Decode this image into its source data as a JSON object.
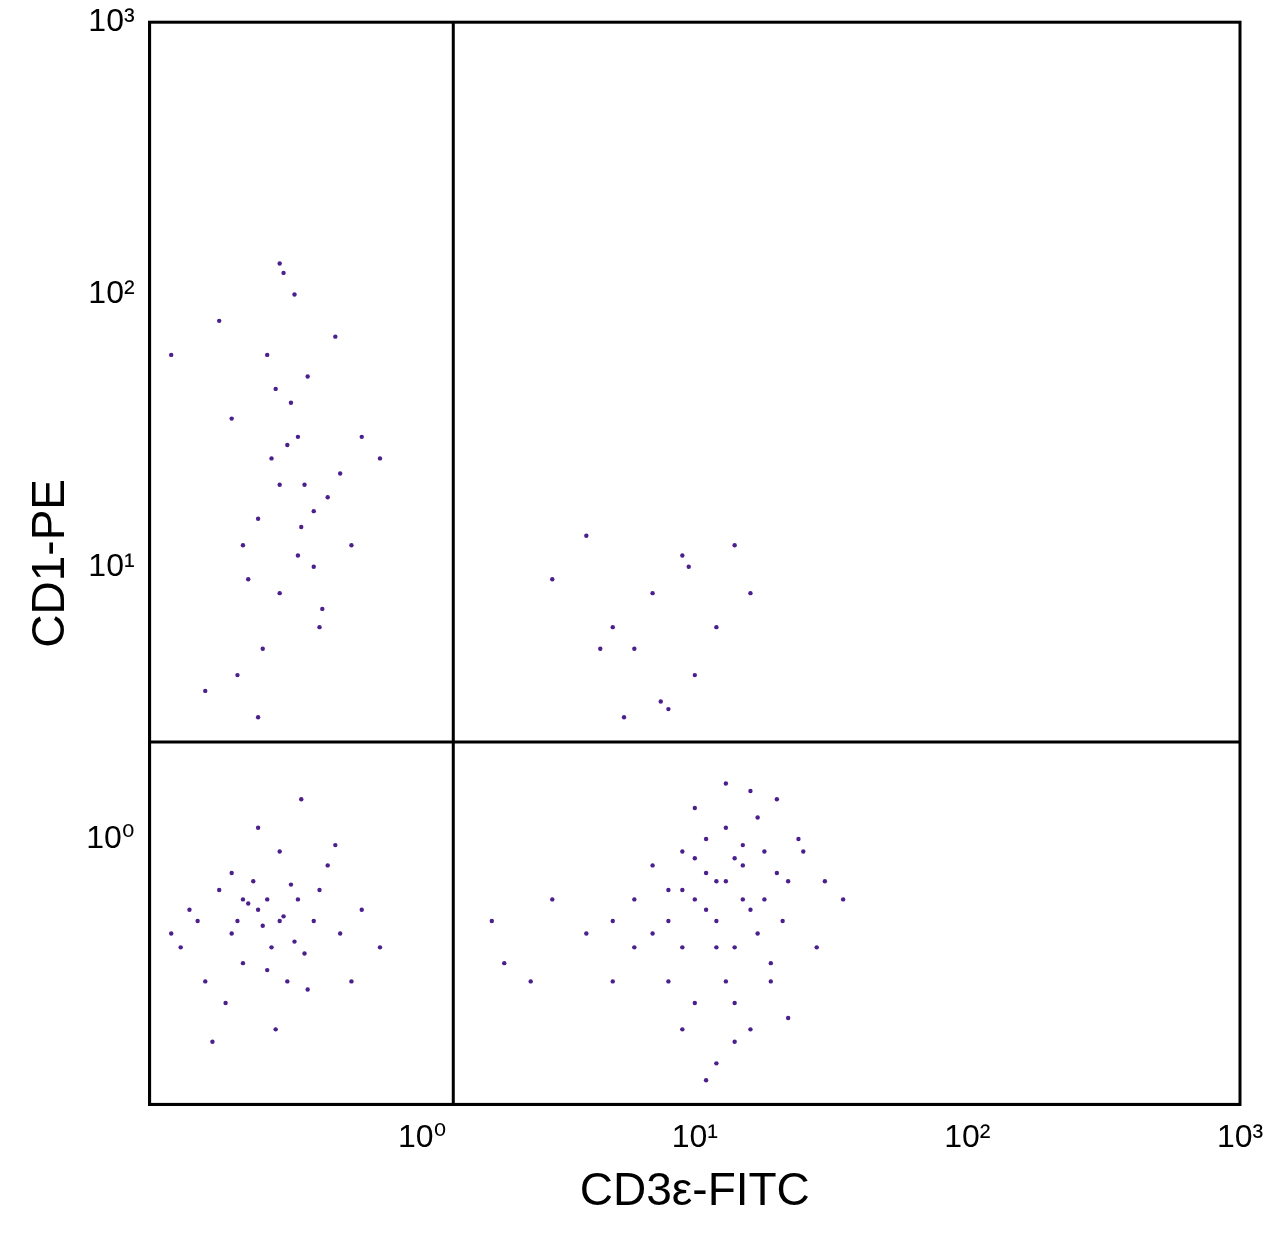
{
  "chart_data": {
    "type": "scatter",
    "x_label": "CD3ε-FITC",
    "y_label": "CD1-PE",
    "log": true,
    "grid": false,
    "color": "#4b1f8c",
    "marker": "dot",
    "xlim": [
      0.1,
      1000
    ],
    "ylim": [
      0.106,
      1000
    ],
    "xticks": [
      {
        "value": 1,
        "label": "10⁰"
      },
      {
        "value": 10,
        "label": "10¹"
      },
      {
        "value": 100,
        "label": "10²"
      },
      {
        "value": 1000,
        "label": "10³"
      }
    ],
    "yticks": [
      {
        "value": 1,
        "label": "10⁰"
      },
      {
        "value": 10,
        "label": "10¹"
      },
      {
        "value": 100,
        "label": "10²"
      },
      {
        "value": 1000,
        "label": "10³"
      }
    ],
    "gates": {
      "x": 1.3,
      "y": 2.27
    },
    "x": [
      0.15,
      0.2,
      0.25,
      0.3,
      0.35,
      0.22,
      0.28,
      0.18,
      0.4,
      0.5,
      0.13,
      0.24,
      0.32,
      0.27,
      0.19,
      0.45,
      0.6,
      0.21,
      0.3,
      0.37,
      0.16,
      0.26,
      0.23,
      0.34,
      0.29,
      0.42,
      0.55,
      0.14,
      0.2,
      0.31,
      0.25,
      0.38,
      0.17,
      0.48,
      0.7,
      0.33,
      0.22,
      0.27,
      0.12,
      0.36,
      10,
      12,
      15,
      8,
      18,
      14,
      11,
      9,
      20,
      16,
      7,
      13,
      17,
      6,
      22,
      10,
      12,
      25,
      5,
      14,
      19,
      11,
      9,
      15,
      8,
      13,
      21,
      4,
      16,
      30,
      3,
      10,
      12,
      18,
      7,
      14,
      2,
      11,
      24,
      6,
      15,
      9,
      13,
      17,
      20,
      10,
      5,
      12,
      8,
      16,
      1.8,
      2.5,
      28,
      35,
      11,
      14,
      19,
      9,
      13,
      22,
      0.25,
      0.3,
      0.35,
      0.4,
      0.28,
      0.33,
      0.22,
      0.45,
      0.38,
      0.3,
      0.2,
      0.5,
      0.27,
      0.36,
      0.42,
      0.32,
      0.18,
      0.6,
      0.26,
      0.34,
      0.4,
      0.29,
      0.23,
      0.55,
      0.31,
      0.37,
      0.21,
      0.48,
      0.3,
      0.35,
      0.16,
      0.7,
      0.25,
      0.43,
      0.12,
      3,
      4,
      5,
      6,
      7,
      8,
      9,
      10,
      12,
      14,
      4.5,
      7.5,
      9.5,
      16,
      5.5
    ],
    "values": [
      0.5,
      0.45,
      0.55,
      0.5,
      0.6,
      0.35,
      0.4,
      0.65,
      0.5,
      0.45,
      0.4,
      0.7,
      0.3,
      0.6,
      0.25,
      0.8,
      0.55,
      0.5,
      0.9,
      0.38,
      0.3,
      0.48,
      0.58,
      0.42,
      0.2,
      0.65,
      0.3,
      0.55,
      0.75,
      0.52,
      1.1,
      0.28,
      0.18,
      0.95,
      0.4,
      0.68,
      0.6,
      0.33,
      0.45,
      1.4,
      0.6,
      0.7,
      0.8,
      0.5,
      0.9,
      0.4,
      1.0,
      0.65,
      0.75,
      0.55,
      0.45,
      0.3,
      1.2,
      0.6,
      0.7,
      0.25,
      0.5,
      0.9,
      0.5,
      0.85,
      0.35,
      0.75,
      0.9,
      0.6,
      0.3,
      1.1,
      0.5,
      0.45,
      0.2,
      0.7,
      0.6,
      1.3,
      0.4,
      0.6,
      0.8,
      0.25,
      0.35,
      0.55,
      1.0,
      0.4,
      0.95,
      0.2,
      0.7,
      0.45,
      1.4,
      0.85,
      0.3,
      0.15,
      0.65,
      1.5,
      0.5,
      0.3,
      0.4,
      0.6,
      0.13,
      0.18,
      0.3,
      0.4,
      1.6,
      0.22,
      15,
      20,
      30,
      10,
      25,
      40,
      12,
      18,
      50,
      8,
      35,
      22,
      60,
      14,
      6,
      28,
      80,
      30,
      5,
      100,
      16,
      45,
      9,
      12,
      120,
      20,
      4,
      70,
      130,
      11,
      3.5,
      25,
      2.8,
      7,
      60,
      9,
      13,
      6,
      5,
      8,
      3,
      11,
      4,
      6,
      12,
      5,
      3.2,
      10,
      8,
      2.8
    ]
  }
}
